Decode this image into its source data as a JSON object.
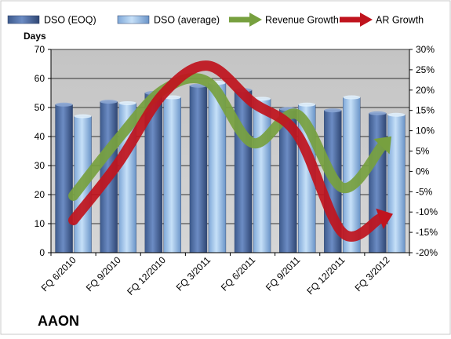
{
  "chart_data": {
    "type": "bar",
    "title": "AAON",
    "ylabel": "Days",
    "categories": [
      "FQ 6/2010",
      "FQ 9/2010",
      "FQ 12/2010",
      "FQ 3/2011",
      "FQ 6/2011",
      "FQ 9/2011",
      "FQ 12/2011",
      "FQ 3/2012"
    ],
    "y_left": {
      "lim": [
        0,
        70
      ],
      "ticks": [
        0,
        10,
        20,
        30,
        40,
        50,
        60,
        70
      ]
    },
    "y_right": {
      "lim": [
        -20,
        30
      ],
      "ticks": [
        "-20%",
        "-15%",
        "-10%",
        "-5%",
        "0%",
        "5%",
        "10%",
        "15%",
        "20%",
        "25%",
        "30%"
      ]
    },
    "grid": true,
    "legend_position": "top",
    "series": [
      {
        "name": "DSO (EOQ)",
        "kind": "bar",
        "axis": "left",
        "color": "#4f6fa6",
        "values": [
          51,
          52,
          55,
          57.5,
          56,
          49.5,
          49,
          48
        ]
      },
      {
        "name": "DSO (average)",
        "kind": "bar",
        "axis": "left",
        "color": "#9fc3ea",
        "values": [
          47,
          51.5,
          53.5,
          58.5,
          53,
          51,
          53.5,
          47.5
        ]
      },
      {
        "name": "Revenue Growth",
        "kind": "line",
        "axis": "right",
        "color": "#77a03f",
        "values": [
          -6,
          8,
          20,
          22,
          7,
          14,
          -4,
          7.5
        ]
      },
      {
        "name": "AR Growth",
        "kind": "line",
        "axis": "right",
        "color": "#c0141e",
        "values": [
          -12,
          2,
          19,
          26,
          17,
          9,
          -15,
          -11
        ]
      }
    ]
  }
}
